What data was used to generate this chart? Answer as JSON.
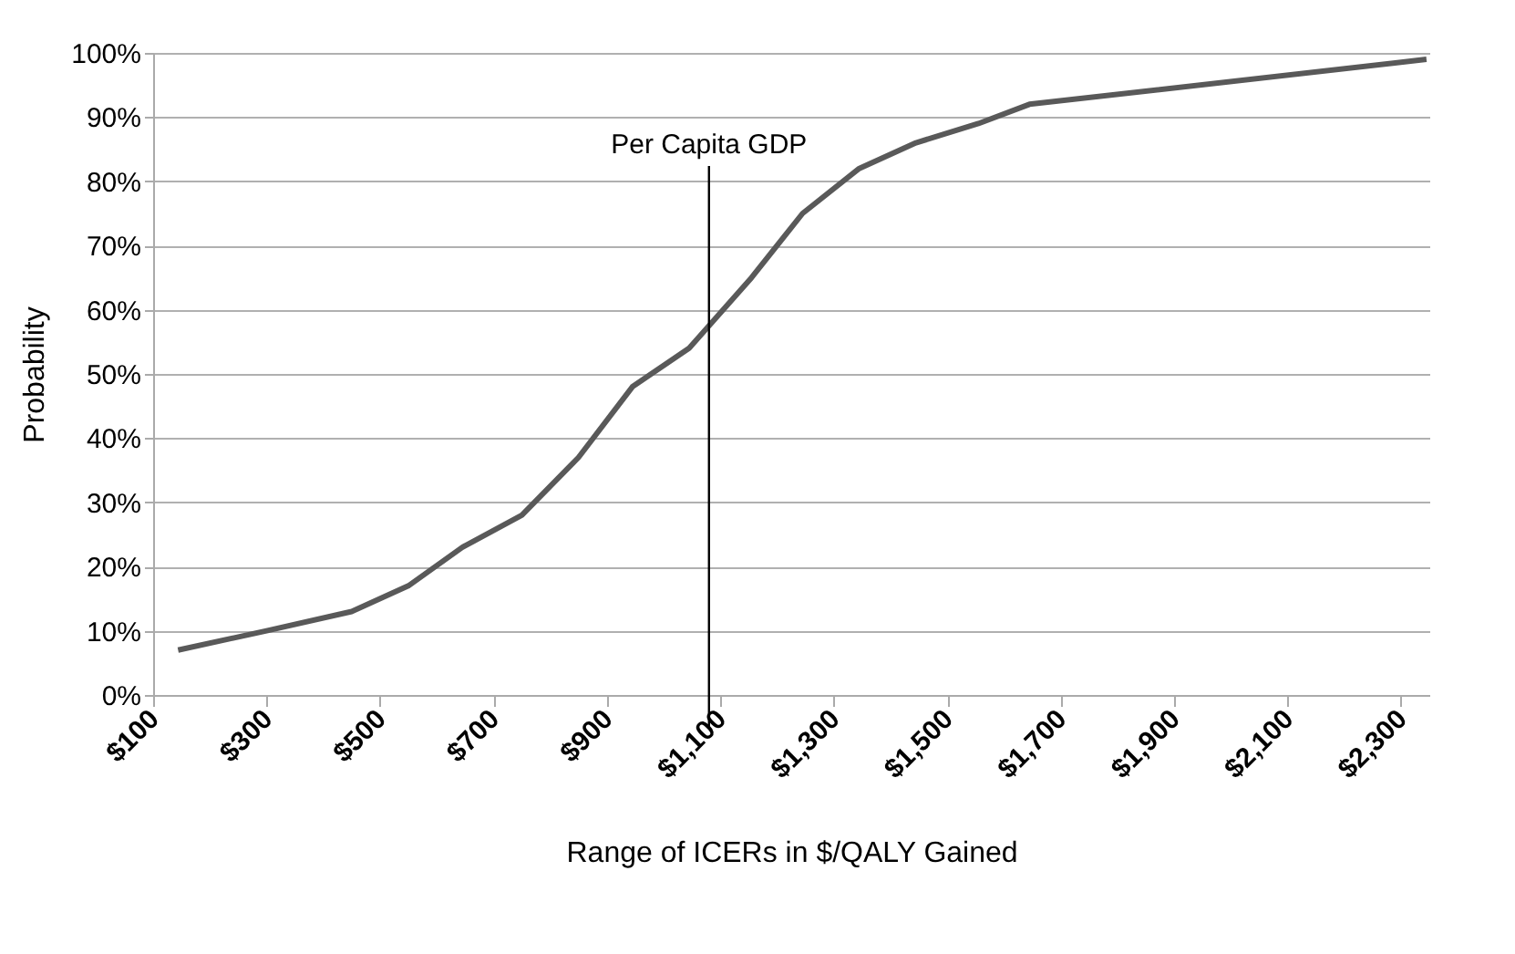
{
  "chart_data": {
    "type": "line",
    "xlabel": "Range of ICERs in $/QALY Gained",
    "ylabel": "Probability",
    "x": [
      144,
      300,
      450,
      550,
      645,
      750,
      850,
      945,
      1045,
      1155,
      1245,
      1345,
      1445,
      1555,
      1645,
      2345
    ],
    "series": [
      {
        "color": "#595959",
        "values": [
          7,
          10,
          13,
          17,
          23,
          28,
          37,
          48,
          54,
          65,
          75,
          82,
          86,
          89,
          92,
          99
        ]
      }
    ],
    "xlim": [
      100,
      2350
    ],
    "ylim": [
      0,
      100
    ],
    "xticks": [
      {
        "value": 100,
        "label": "$100"
      },
      {
        "value": 300,
        "label": "$300"
      },
      {
        "value": 500,
        "label": "$500"
      },
      {
        "value": 700,
        "label": "$700"
      },
      {
        "value": 900,
        "label": "$900"
      },
      {
        "value": 1100,
        "label": "$1,100"
      },
      {
        "value": 1300,
        "label": "$1,300"
      },
      {
        "value": 1500,
        "label": "$1,500"
      },
      {
        "value": 1700,
        "label": "$1,700"
      },
      {
        "value": 1900,
        "label": "$1,900"
      },
      {
        "value": 2100,
        "label": "$2,100"
      },
      {
        "value": 2300,
        "label": "$2,300"
      }
    ],
    "yticks": [
      {
        "value": 0,
        "label": "0%"
      },
      {
        "value": 10,
        "label": "10%"
      },
      {
        "value": 20,
        "label": "20%"
      },
      {
        "value": 30,
        "label": "30%"
      },
      {
        "value": 40,
        "label": "40%"
      },
      {
        "value": 50,
        "label": "50%"
      },
      {
        "value": 60,
        "label": "60%"
      },
      {
        "value": 70,
        "label": "70%"
      },
      {
        "value": 80,
        "label": "80%"
      },
      {
        "value": 90,
        "label": "90%"
      },
      {
        "value": 100,
        "label": "100%"
      }
    ],
    "ref_lines": [
      {
        "axis": "x",
        "value": 1080,
        "label": "Per Capita GDP",
        "color": "#000000"
      }
    ],
    "grid": "y",
    "marker": "none",
    "line_style": "solid"
  }
}
